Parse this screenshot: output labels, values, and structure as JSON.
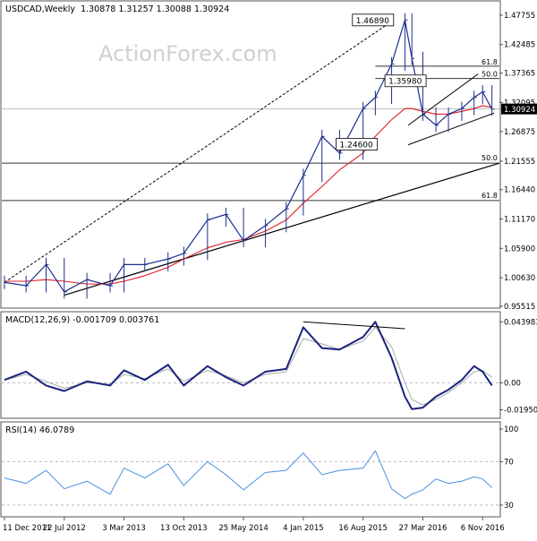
{
  "chart_data": [
    {
      "id": "price",
      "type": "line",
      "title": "USDCAD,Weekly",
      "ohlc_label": "1.30878 1.31257 1.30088 1.30924",
      "watermark": "ActionForex.com",
      "last_price_label": "1.30924",
      "ylim": [
        0.955,
        1.5
      ],
      "y_ticks": [
        1.47755,
        1.42485,
        1.37365,
        1.32095,
        1.26875,
        1.21555,
        1.1644,
        1.1117,
        1.059,
        1.0063,
        0.95515
      ],
      "y_tick_labels": [
        "1.47755",
        "1.42485",
        "1.37365",
        "1.32095",
        "1.26875",
        "1.21555",
        "1.16440",
        "1.11170",
        "1.05900",
        "1.00630",
        "0.95515"
      ],
      "x": [
        "2011-12-11",
        "2012-03-01",
        "2012-05-15",
        "2012-07-22",
        "2012-10-15",
        "2013-01-10",
        "2013-03-03",
        "2013-05-20",
        "2013-08-15",
        "2013-10-13",
        "2014-01-10",
        "2014-03-20",
        "2014-05-25",
        "2014-08-15",
        "2014-11-01",
        "2015-01-04",
        "2015-03-15",
        "2015-05-20",
        "2015-08-16",
        "2015-10-01",
        "2015-12-01",
        "2016-01-20",
        "2016-02-15",
        "2016-03-27",
        "2016-05-15",
        "2016-07-01",
        "2016-08-20",
        "2016-10-05",
        "2016-11-06",
        "2016-12-11"
      ],
      "series": [
        {
          "values": [
            0.998,
            0.992,
            1.03,
            0.981,
            1.003,
            0.992,
            1.03,
            1.03,
            1.04,
            1.05,
            1.11,
            1.12,
            1.073,
            1.1,
            1.13,
            1.19,
            1.26,
            1.23,
            1.31,
            1.33,
            1.39,
            1.469,
            1.4,
            1.3,
            1.28,
            1.3,
            1.31,
            1.33,
            1.34,
            1.309
          ]
        },
        {
          "values": [
            1.0,
            1.0,
            1.003,
            1.0,
            0.995,
            0.995,
            1.0,
            1.01,
            1.025,
            1.04,
            1.06,
            1.07,
            1.075,
            1.09,
            1.11,
            1.14,
            1.17,
            1.2,
            1.23,
            1.26,
            1.29,
            1.31,
            1.31,
            1.305,
            1.3,
            1.3,
            1.305,
            1.31,
            1.315,
            1.312
          ]
        }
      ],
      "levels": [
        {
          "label": "",
          "value": 1.30924
        },
        {
          "label": "50.0",
          "value": 1.212
        },
        {
          "label": "61.8",
          "value": 1.145
        },
        {
          "label": "61.8",
          "value": 1.386
        },
        {
          "label": "50.0",
          "value": 1.364
        }
      ],
      "annotations": [
        {
          "label": "1.46890",
          "x": "2015-12-15",
          "y": 1.469
        },
        {
          "label": "1.35980",
          "x": "2016-04-15",
          "y": 1.3598
        },
        {
          "label": "1.24600",
          "x": "2015-10-15",
          "y": 1.246
        }
      ]
    },
    {
      "id": "macd",
      "type": "line",
      "title": "MACD(12,26,9) -0.001709 0.003761",
      "ylim": [
        -0.025,
        0.05
      ],
      "y_ticks": [
        0.043983,
        0.0,
        -0.019501
      ],
      "y_tick_labels": [
        "0.043983",
        "0.00",
        "-0.019501"
      ],
      "series": [
        {
          "values": [
            0.002,
            0.008,
            -0.002,
            -0.006,
            0.001,
            -0.002,
            0.009,
            0.002,
            0.013,
            -0.002,
            0.012,
            0.004,
            -0.002,
            0.008,
            0.01,
            0.04,
            0.025,
            0.024,
            0.033,
            0.044,
            0.018,
            -0.01,
            -0.019,
            -0.018,
            -0.01,
            -0.005,
            0.002,
            0.012,
            0.008,
            -0.002
          ]
        },
        {
          "values": [
            0.002,
            0.006,
            0.001,
            -0.004,
            0.0,
            -0.001,
            0.006,
            0.003,
            0.01,
            0.001,
            0.009,
            0.005,
            0.0,
            0.006,
            0.008,
            0.032,
            0.028,
            0.024,
            0.03,
            0.04,
            0.026,
            0.0,
            -0.012,
            -0.016,
            -0.012,
            -0.007,
            0.0,
            0.008,
            0.009,
            0.004
          ]
        }
      ]
    },
    {
      "id": "rsi",
      "type": "line",
      "title": "RSI(14) 46.0789",
      "ylim": [
        20,
        105
      ],
      "y_ticks": [
        100,
        70,
        30
      ],
      "y_tick_labels": [
        "100",
        "70",
        "30"
      ],
      "series": [
        {
          "values": [
            55,
            50,
            62,
            45,
            52,
            40,
            64,
            55,
            68,
            48,
            70,
            58,
            44,
            60,
            62,
            78,
            58,
            62,
            64,
            80,
            45,
            36,
            40,
            44,
            54,
            50,
            52,
            56,
            54,
            46
          ]
        }
      ]
    }
  ],
  "x_axis": {
    "tick_labels": [
      "11 Dec 2011",
      "22 Jul 2012",
      "3 Mar 2013",
      "13 Oct 2013",
      "25 May 2014",
      "4 Jan 2015",
      "16 Aug 2015",
      "27 Mar 2016",
      "6 Nov 2016"
    ],
    "range": [
      "2011-12-01",
      "2017-01-08"
    ]
  },
  "colors": {
    "price": "#1a2f8c",
    "ma": "#e01b24",
    "macd": "#1a237e",
    "signal": "#aaaaaa",
    "rsi": "#4a90e2",
    "grid": "#bbbbbb",
    "trend": "#000000",
    "watermark": "#d0d0d0"
  }
}
